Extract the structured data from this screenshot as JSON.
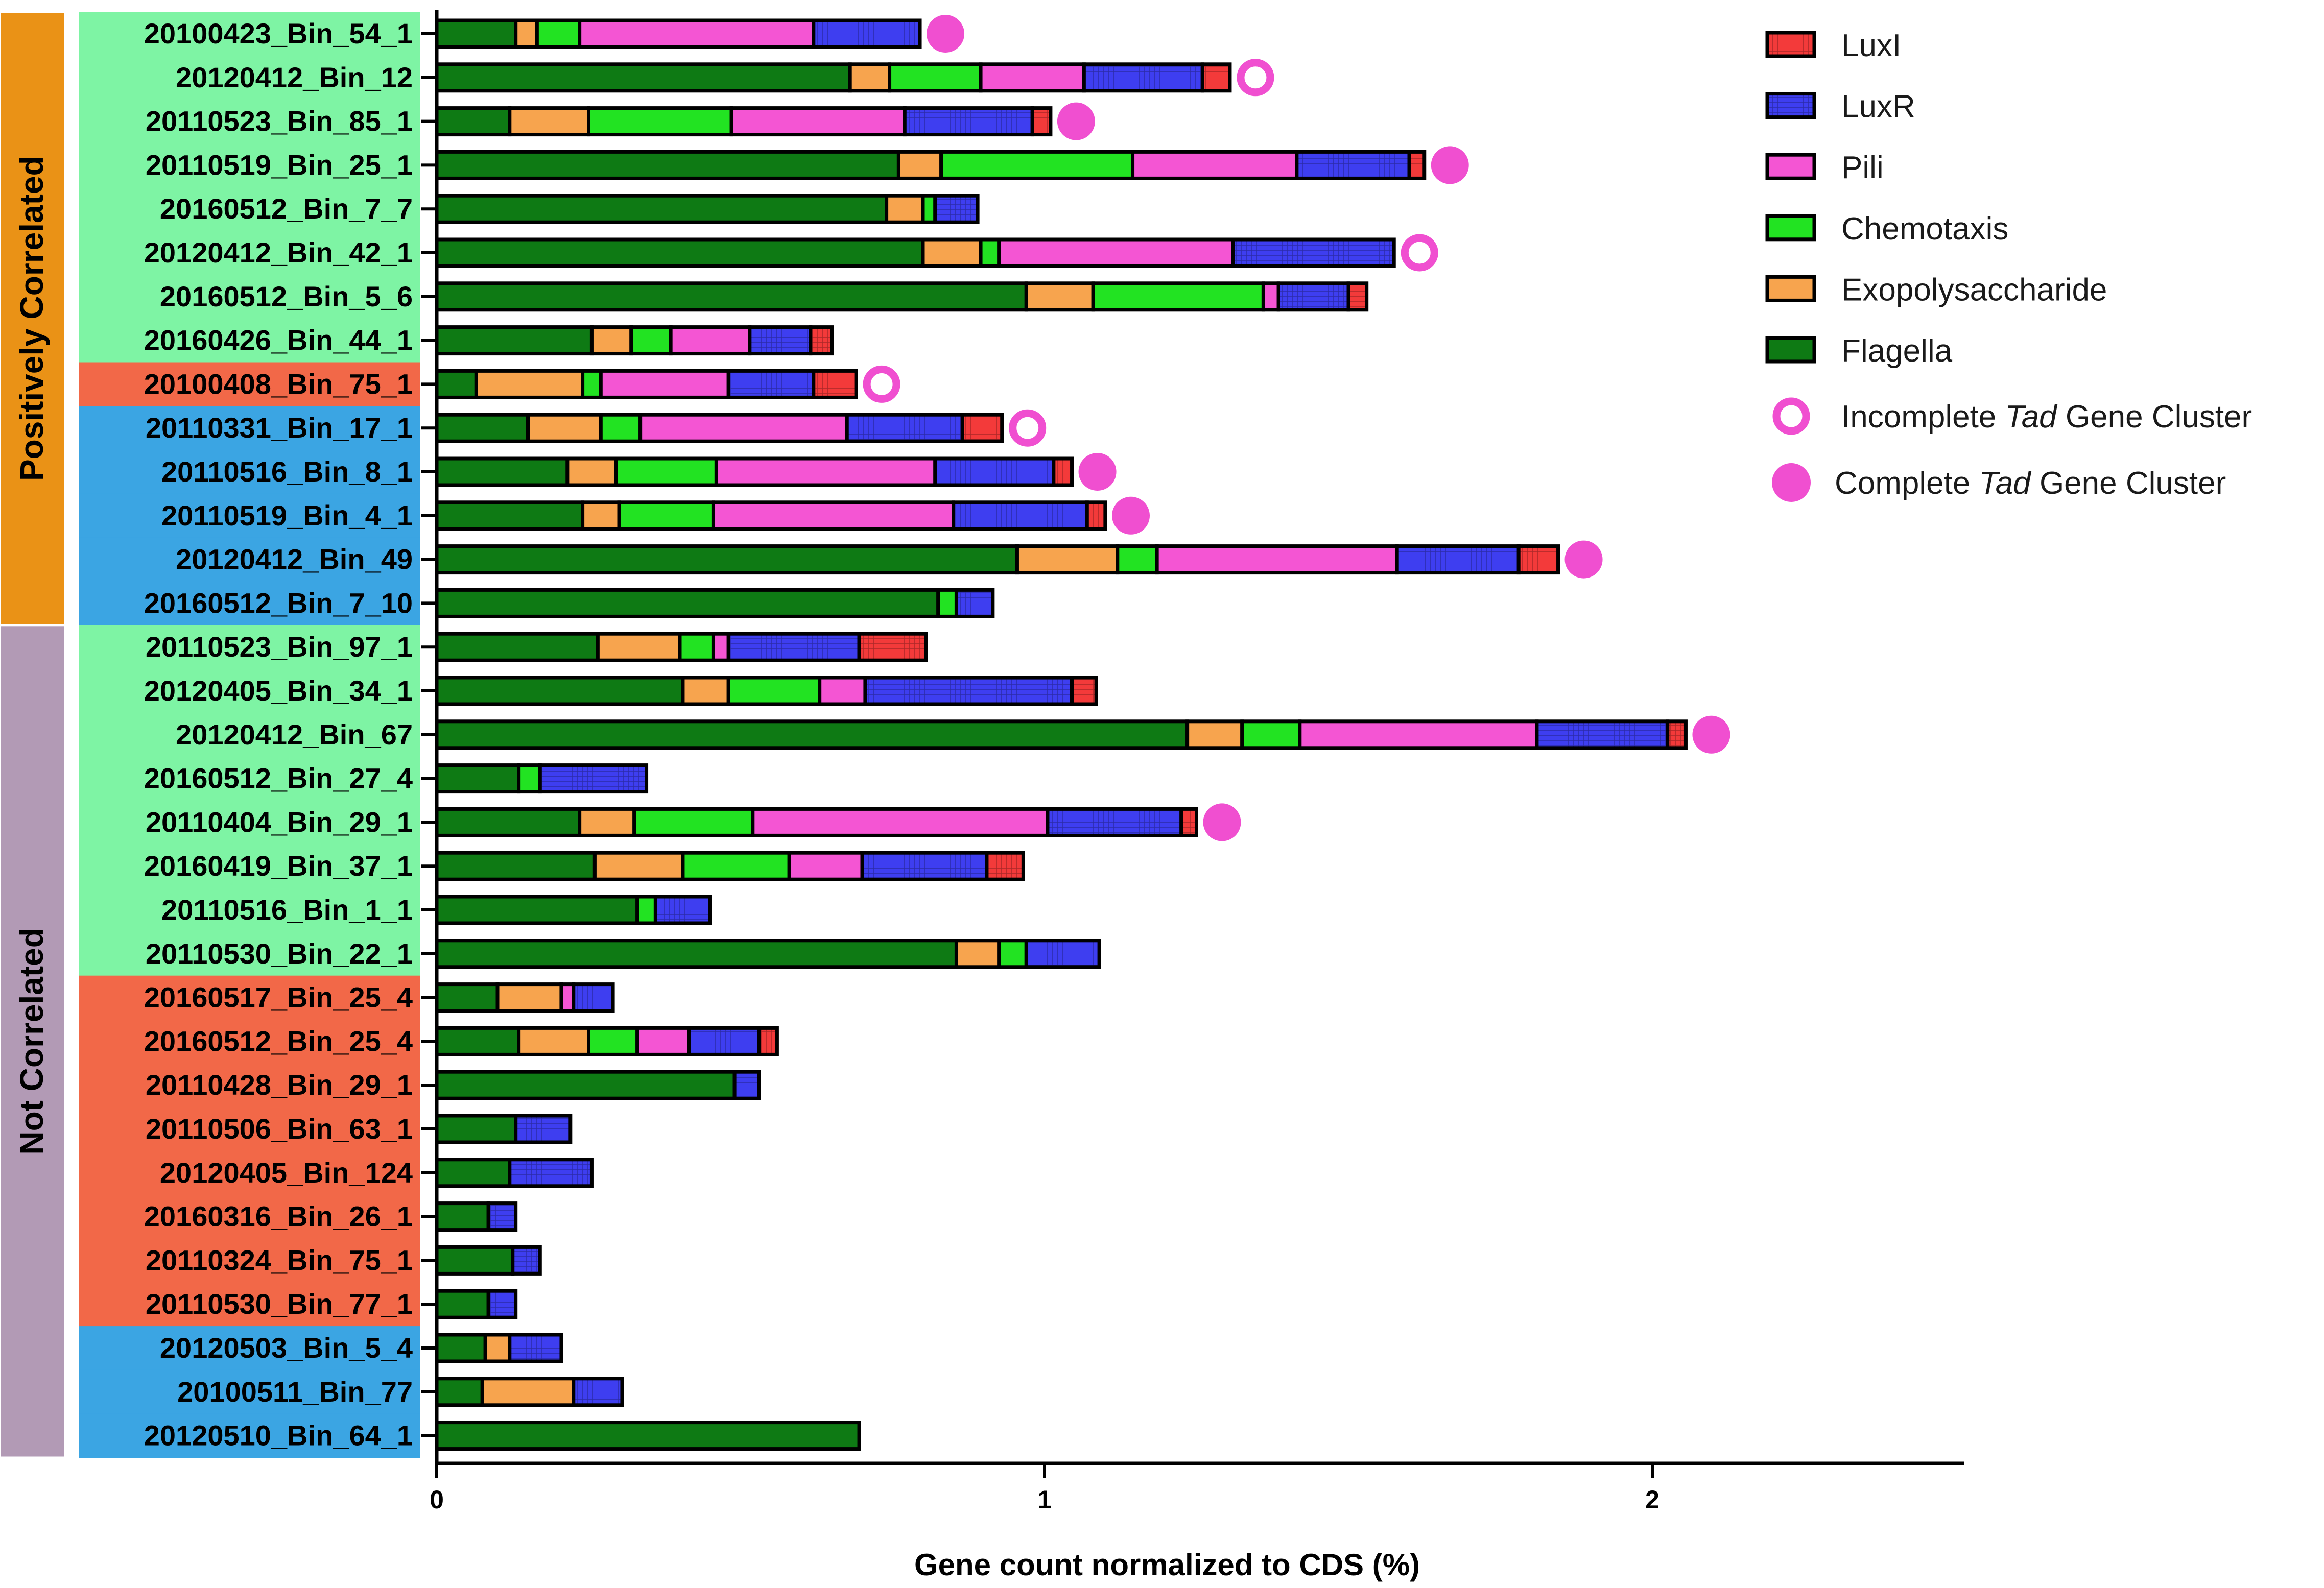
{
  "chart_data": {
    "type": "bar",
    "orientation": "horizontal",
    "stacked": true,
    "title": "",
    "xlabel": "Gene count normalized to CDS (%)",
    "ylabel": "",
    "xlim": [
      0,
      2.5
    ],
    "xticks": [
      "0",
      "1",
      "2"
    ],
    "legend_position": "top-right",
    "segment_order": [
      "Flagella",
      "Exopolysaccharide",
      "Chemotaxis",
      "Pili",
      "LuxR",
      "LuxI"
    ],
    "series": [
      {
        "key": "LuxI",
        "name": "LuxI",
        "color": "#f33a3a",
        "pattern": "grid"
      },
      {
        "key": "LuxR",
        "name": "LuxR",
        "color": "#3e3ef0",
        "pattern": "grid"
      },
      {
        "key": "Pili",
        "name": "Pili",
        "color": "#f455d3",
        "pattern": "none"
      },
      {
        "key": "Chemotaxis",
        "name": "Chemotaxis",
        "color": "#22e322",
        "pattern": "none"
      },
      {
        "key": "Exopolysaccharide",
        "name": "Exopolysaccharide",
        "color": "#f7a44e",
        "pattern": "none"
      },
      {
        "key": "Flagella",
        "name": "Flagella",
        "color": "#0e7a14",
        "pattern": "none"
      }
    ],
    "markers": [
      {
        "key": "incomplete",
        "name_parts": [
          "Incomplete ",
          "Tad",
          " Gene Cluster"
        ],
        "color": "#f04fd0",
        "filled": false
      },
      {
        "key": "complete",
        "name_parts": [
          "Complete ",
          "Tad",
          " Gene Cluster"
        ],
        "color": "#f04fd0",
        "filled": true
      }
    ],
    "groups": [
      {
        "name": "Positively Correlated",
        "color": "#ea9216",
        "first_bin": 0,
        "last_bin": 13
      },
      {
        "name": "Not Correlated",
        "color": "#b29ab5",
        "first_bin": 14,
        "last_bin": 32
      }
    ],
    "label_colors": {
      "green": "#7ef4a4",
      "red": "#f26848",
      "blue": "#3ba5e3"
    },
    "bins": [
      {
        "name": "20100423_Bin_54_1",
        "label_color": "green",
        "tad": "complete",
        "Flagella": 0.13,
        "Exopolysaccharide": 0.035,
        "Chemotaxis": 0.07,
        "Pili": 0.385,
        "LuxR": 0.175,
        "LuxI": 0.0
      },
      {
        "name": "20120412_Bin_12",
        "label_color": "green",
        "tad": "incomplete",
        "Flagella": 0.68,
        "Exopolysaccharide": 0.065,
        "Chemotaxis": 0.15,
        "Pili": 0.17,
        "LuxR": 0.195,
        "LuxI": 0.045
      },
      {
        "name": "20110523_Bin_85_1",
        "label_color": "green",
        "tad": "complete",
        "Flagella": 0.12,
        "Exopolysaccharide": 0.13,
        "Chemotaxis": 0.235,
        "Pili": 0.285,
        "LuxR": 0.21,
        "LuxI": 0.03
      },
      {
        "name": "20110519_Bin_25_1",
        "label_color": "green",
        "tad": "complete",
        "Flagella": 0.76,
        "Exopolysaccharide": 0.07,
        "Chemotaxis": 0.315,
        "Pili": 0.27,
        "LuxR": 0.185,
        "LuxI": 0.025
      },
      {
        "name": "20160512_Bin_7_7",
        "label_color": "green",
        "tad": "",
        "Flagella": 0.74,
        "Exopolysaccharide": 0.06,
        "Chemotaxis": 0.02,
        "Pili": 0.0,
        "LuxR": 0.07,
        "LuxI": 0.0
      },
      {
        "name": "20120412_Bin_42_1",
        "label_color": "green",
        "tad": "incomplete",
        "Flagella": 0.8,
        "Exopolysaccharide": 0.095,
        "Chemotaxis": 0.03,
        "Pili": 0.385,
        "LuxR": 0.265,
        "LuxI": 0.0
      },
      {
        "name": "20160512_Bin_5_6",
        "label_color": "green",
        "tad": "",
        "Flagella": 0.97,
        "Exopolysaccharide": 0.11,
        "Chemotaxis": 0.28,
        "Pili": 0.025,
        "LuxR": 0.115,
        "LuxI": 0.03
      },
      {
        "name": "20160426_Bin_44_1",
        "label_color": "green",
        "tad": "",
        "Flagella": 0.255,
        "Exopolysaccharide": 0.065,
        "Chemotaxis": 0.065,
        "Pili": 0.13,
        "LuxR": 0.1,
        "LuxI": 0.035
      },
      {
        "name": "20100408_Bin_75_1",
        "label_color": "red",
        "tad": "incomplete",
        "Flagella": 0.065,
        "Exopolysaccharide": 0.175,
        "Chemotaxis": 0.03,
        "Pili": 0.21,
        "LuxR": 0.14,
        "LuxI": 0.07
      },
      {
        "name": "20110331_Bin_17_1",
        "label_color": "blue",
        "tad": "incomplete",
        "Flagella": 0.15,
        "Exopolysaccharide": 0.12,
        "Chemotaxis": 0.065,
        "Pili": 0.34,
        "LuxR": 0.19,
        "LuxI": 0.065
      },
      {
        "name": "20110516_Bin_8_1",
        "label_color": "blue",
        "tad": "complete",
        "Flagella": 0.215,
        "Exopolysaccharide": 0.08,
        "Chemotaxis": 0.165,
        "Pili": 0.36,
        "LuxR": 0.195,
        "LuxI": 0.03
      },
      {
        "name": "20110519_Bin_4_1",
        "label_color": "blue",
        "tad": "complete",
        "Flagella": 0.24,
        "Exopolysaccharide": 0.06,
        "Chemotaxis": 0.155,
        "Pili": 0.395,
        "LuxR": 0.22,
        "LuxI": 0.03
      },
      {
        "name": "20120412_Bin_49",
        "label_color": "blue",
        "tad": "complete",
        "Flagella": 0.955,
        "Exopolysaccharide": 0.165,
        "Chemotaxis": 0.065,
        "Pili": 0.395,
        "LuxR": 0.2,
        "LuxI": 0.065
      },
      {
        "name": "20160512_Bin_7_10",
        "label_color": "blue",
        "tad": "",
        "Flagella": 0.825,
        "Exopolysaccharide": 0.0,
        "Chemotaxis": 0.03,
        "Pili": 0.0,
        "LuxR": 0.06,
        "LuxI": 0.0
      },
      {
        "name": "20110523_Bin_97_1",
        "label_color": "green",
        "tad": "",
        "Flagella": 0.265,
        "Exopolysaccharide": 0.135,
        "Chemotaxis": 0.055,
        "Pili": 0.025,
        "LuxR": 0.215,
        "LuxI": 0.11
      },
      {
        "name": "20120405_Bin_34_1",
        "label_color": "green",
        "tad": "",
        "Flagella": 0.405,
        "Exopolysaccharide": 0.075,
        "Chemotaxis": 0.15,
        "Pili": 0.075,
        "LuxR": 0.34,
        "LuxI": 0.04
      },
      {
        "name": "20120412_Bin_67",
        "label_color": "green",
        "tad": "complete",
        "Flagella": 1.235,
        "Exopolysaccharide": 0.09,
        "Chemotaxis": 0.095,
        "Pili": 0.39,
        "LuxR": 0.215,
        "LuxI": 0.03
      },
      {
        "name": "20160512_Bin_27_4",
        "label_color": "green",
        "tad": "",
        "Flagella": 0.135,
        "Exopolysaccharide": 0.0,
        "Chemotaxis": 0.035,
        "Pili": 0.0,
        "LuxR": 0.175,
        "LuxI": 0.0
      },
      {
        "name": "20110404_Bin_29_1",
        "label_color": "green",
        "tad": "complete",
        "Flagella": 0.235,
        "Exopolysaccharide": 0.09,
        "Chemotaxis": 0.195,
        "Pili": 0.485,
        "LuxR": 0.22,
        "LuxI": 0.025
      },
      {
        "name": "20160419_Bin_37_1",
        "label_color": "green",
        "tad": "",
        "Flagella": 0.26,
        "Exopolysaccharide": 0.145,
        "Chemotaxis": 0.175,
        "Pili": 0.12,
        "LuxR": 0.205,
        "LuxI": 0.06
      },
      {
        "name": "20110516_Bin_1_1",
        "label_color": "green",
        "tad": "",
        "Flagella": 0.33,
        "Exopolysaccharide": 0.0,
        "Chemotaxis": 0.03,
        "Pili": 0.0,
        "LuxR": 0.09,
        "LuxI": 0.0
      },
      {
        "name": "20110530_Bin_22_1",
        "label_color": "green",
        "tad": "",
        "Flagella": 0.855,
        "Exopolysaccharide": 0.07,
        "Chemotaxis": 0.045,
        "Pili": 0.0,
        "LuxR": 0.12,
        "LuxI": 0.0
      },
      {
        "name": "20160517_Bin_25_4",
        "label_color": "red",
        "tad": "",
        "Flagella": 0.1,
        "Exopolysaccharide": 0.105,
        "Chemotaxis": 0.0,
        "Pili": 0.02,
        "LuxR": 0.065,
        "LuxI": 0.0
      },
      {
        "name": "20160512_Bin_25_4",
        "label_color": "red",
        "tad": "",
        "Flagella": 0.135,
        "Exopolysaccharide": 0.115,
        "Chemotaxis": 0.08,
        "Pili": 0.085,
        "LuxR": 0.115,
        "LuxI": 0.03
      },
      {
        "name": "20110428_Bin_29_1",
        "label_color": "red",
        "tad": "",
        "Flagella": 0.49,
        "Exopolysaccharide": 0.0,
        "Chemotaxis": 0.0,
        "Pili": 0.0,
        "LuxR": 0.04,
        "LuxI": 0.0
      },
      {
        "name": "20110506_Bin_63_1",
        "label_color": "red",
        "tad": "",
        "Flagella": 0.13,
        "Exopolysaccharide": 0.0,
        "Chemotaxis": 0.0,
        "Pili": 0.0,
        "LuxR": 0.09,
        "LuxI": 0.0
      },
      {
        "name": "20120405_Bin_124",
        "label_color": "red",
        "tad": "",
        "Flagella": 0.12,
        "Exopolysaccharide": 0.0,
        "Chemotaxis": 0.0,
        "Pili": 0.0,
        "LuxR": 0.135,
        "LuxI": 0.0
      },
      {
        "name": "20160316_Bin_26_1",
        "label_color": "red",
        "tad": "",
        "Flagella": 0.085,
        "Exopolysaccharide": 0.0,
        "Chemotaxis": 0.0,
        "Pili": 0.0,
        "LuxR": 0.045,
        "LuxI": 0.0
      },
      {
        "name": "20110324_Bin_75_1",
        "label_color": "red",
        "tad": "",
        "Flagella": 0.125,
        "Exopolysaccharide": 0.0,
        "Chemotaxis": 0.0,
        "Pili": 0.0,
        "LuxR": 0.045,
        "LuxI": 0.0
      },
      {
        "name": "20110530_Bin_77_1",
        "label_color": "red",
        "tad": "",
        "Flagella": 0.085,
        "Exopolysaccharide": 0.0,
        "Chemotaxis": 0.0,
        "Pili": 0.0,
        "LuxR": 0.045,
        "LuxI": 0.0
      },
      {
        "name": "20120503_Bin_5_4",
        "label_color": "blue",
        "tad": "",
        "Flagella": 0.08,
        "Exopolysaccharide": 0.04,
        "Chemotaxis": 0.0,
        "Pili": 0.0,
        "LuxR": 0.085,
        "LuxI": 0.0
      },
      {
        "name": "20100511_Bin_77",
        "label_color": "blue",
        "tad": "",
        "Flagella": 0.075,
        "Exopolysaccharide": 0.15,
        "Chemotaxis": 0.0,
        "Pili": 0.0,
        "LuxR": 0.08,
        "LuxI": 0.0
      },
      {
        "name": "20120510_Bin_64_1",
        "label_color": "blue",
        "tad": "",
        "Flagella": 0.695,
        "Exopolysaccharide": 0.0,
        "Chemotaxis": 0.0,
        "Pili": 0.0,
        "LuxR": 0.0,
        "LuxI": 0.0
      }
    ]
  }
}
